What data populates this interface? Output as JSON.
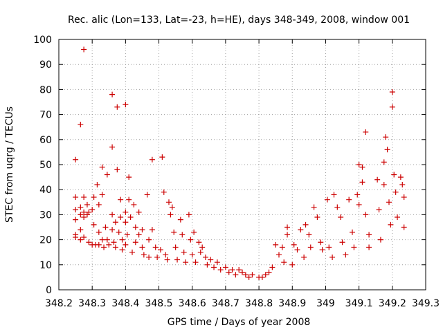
{
  "chart_data": {
    "type": "scatter",
    "title": "Rec. alic (Lon=133, Lat=-23, h=HE), days 348-349, 2008, window 001",
    "xlabel": "GPS time / Days of year 2008",
    "ylabel": "STEC from uqrg / TECUs",
    "xlim": [
      348.2,
      349.3
    ],
    "ylim": [
      0,
      100
    ],
    "xticks": [
      348.2,
      348.3,
      348.4,
      348.5,
      348.6,
      348.7,
      348.8,
      348.9,
      349,
      349.1,
      349.2,
      349.3
    ],
    "xtick_labels": [
      "348.2",
      "348.3",
      "348.4",
      "348.5",
      "348.6",
      "348.7",
      "348.8",
      "348.9",
      "349",
      "349.1",
      "349.2",
      "349.3"
    ],
    "yticks": [
      0,
      10,
      20,
      30,
      40,
      50,
      60,
      70,
      80,
      90,
      100
    ],
    "ytick_labels": [
      "0",
      "10",
      "20",
      "30",
      "40",
      "50",
      "60",
      "70",
      "80",
      "90",
      "100"
    ],
    "grid": true,
    "marker": "+",
    "color": "#cc0000",
    "series": [
      {
        "name": "",
        "points": [
          [
            348.25,
            52
          ],
          [
            348.25,
            37
          ],
          [
            348.25,
            32
          ],
          [
            348.25,
            28
          ],
          [
            348.25,
            22
          ],
          [
            348.25,
            21
          ],
          [
            348.265,
            66
          ],
          [
            348.265,
            33
          ],
          [
            348.265,
            30
          ],
          [
            348.265,
            24
          ],
          [
            348.265,
            20
          ],
          [
            348.275,
            96
          ],
          [
            348.275,
            37
          ],
          [
            348.275,
            31
          ],
          [
            348.275,
            29
          ],
          [
            348.275,
            21
          ],
          [
            348.285,
            34
          ],
          [
            348.285,
            30
          ],
          [
            348.29,
            31
          ],
          [
            348.29,
            19
          ],
          [
            348.3,
            32
          ],
          [
            348.3,
            18
          ],
          [
            348.305,
            37
          ],
          [
            348.305,
            26
          ],
          [
            348.31,
            18
          ],
          [
            348.315,
            42
          ],
          [
            348.32,
            34
          ],
          [
            348.32,
            23
          ],
          [
            348.32,
            18
          ],
          [
            348.33,
            49
          ],
          [
            348.33,
            38
          ],
          [
            348.33,
            20
          ],
          [
            348.335,
            17
          ],
          [
            348.34,
            25
          ],
          [
            348.345,
            46
          ],
          [
            348.345,
            20
          ],
          [
            348.35,
            18
          ],
          [
            348.36,
            78
          ],
          [
            348.36,
            57
          ],
          [
            348.36,
            30
          ],
          [
            348.36,
            24
          ],
          [
            348.365,
            19
          ],
          [
            348.37,
            27
          ],
          [
            348.37,
            17
          ],
          [
            348.375,
            73
          ],
          [
            348.375,
            48
          ],
          [
            348.38,
            23
          ],
          [
            348.385,
            36
          ],
          [
            348.385,
            29
          ],
          [
            348.39,
            20
          ],
          [
            348.39,
            16
          ],
          [
            348.4,
            74
          ],
          [
            348.4,
            31
          ],
          [
            348.4,
            27
          ],
          [
            348.4,
            18
          ],
          [
            348.405,
            22
          ],
          [
            348.41,
            45
          ],
          [
            348.41,
            36
          ],
          [
            348.415,
            29
          ],
          [
            348.42,
            15
          ],
          [
            348.425,
            34
          ],
          [
            348.43,
            25
          ],
          [
            348.43,
            19
          ],
          [
            348.44,
            31
          ],
          [
            348.44,
            22
          ],
          [
            348.45,
            24
          ],
          [
            348.45,
            17
          ],
          [
            348.455,
            14
          ],
          [
            348.465,
            38
          ],
          [
            348.47,
            20
          ],
          [
            348.47,
            13
          ],
          [
            348.48,
            52
          ],
          [
            348.48,
            24
          ],
          [
            348.49,
            17
          ],
          [
            348.495,
            13
          ],
          [
            348.505,
            16
          ],
          [
            348.51,
            53
          ],
          [
            348.515,
            39
          ],
          [
            348.52,
            14
          ],
          [
            348.525,
            12
          ],
          [
            348.53,
            35
          ],
          [
            348.535,
            30
          ],
          [
            348.54,
            33
          ],
          [
            348.545,
            23
          ],
          [
            348.55,
            17
          ],
          [
            348.555,
            12
          ],
          [
            348.565,
            28
          ],
          [
            348.57,
            22
          ],
          [
            348.575,
            15
          ],
          [
            348.58,
            11
          ],
          [
            348.59,
            30
          ],
          [
            348.595,
            20
          ],
          [
            348.6,
            14
          ],
          [
            348.605,
            23
          ],
          [
            348.61,
            11
          ],
          [
            348.62,
            19
          ],
          [
            348.625,
            15
          ],
          [
            348.63,
            17
          ],
          [
            348.64,
            13
          ],
          [
            348.645,
            10
          ],
          [
            348.655,
            12
          ],
          [
            348.665,
            9
          ],
          [
            348.675,
            11
          ],
          [
            348.685,
            8
          ],
          [
            348.7,
            9
          ],
          [
            348.71,
            7
          ],
          [
            348.72,
            8
          ],
          [
            348.73,
            6
          ],
          [
            348.74,
            8
          ],
          [
            348.75,
            7
          ],
          [
            348.76,
            6
          ],
          [
            348.77,
            5
          ],
          [
            348.78,
            6
          ],
          [
            348.8,
            5
          ],
          [
            348.81,
            5
          ],
          [
            348.82,
            6
          ],
          [
            348.83,
            7
          ],
          [
            348.84,
            9
          ],
          [
            348.85,
            18
          ],
          [
            348.86,
            14
          ],
          [
            348.87,
            17
          ],
          [
            348.875,
            11
          ],
          [
            348.885,
            25
          ],
          [
            348.885,
            22
          ],
          [
            348.9,
            10
          ],
          [
            348.905,
            18
          ],
          [
            348.915,
            16
          ],
          [
            348.925,
            24
          ],
          [
            348.935,
            13
          ],
          [
            348.94,
            26
          ],
          [
            348.95,
            22
          ],
          [
            348.955,
            17
          ],
          [
            348.965,
            33
          ],
          [
            348.975,
            29
          ],
          [
            348.985,
            19
          ],
          [
            348.99,
            16
          ],
          [
            349.005,
            36
          ],
          [
            349.01,
            17
          ],
          [
            349.02,
            13
          ],
          [
            349.025,
            38
          ],
          [
            349.035,
            33
          ],
          [
            349.045,
            29
          ],
          [
            349.05,
            19
          ],
          [
            349.06,
            14
          ],
          [
            349.07,
            36
          ],
          [
            349.08,
            23
          ],
          [
            349.085,
            17
          ],
          [
            349.095,
            38
          ],
          [
            349.1,
            50
          ],
          [
            349.1,
            34
          ],
          [
            349.11,
            43
          ],
          [
            349.11,
            49
          ],
          [
            349.12,
            63
          ],
          [
            349.12,
            30
          ],
          [
            349.13,
            22
          ],
          [
            349.13,
            17
          ],
          [
            349.155,
            44
          ],
          [
            349.16,
            32
          ],
          [
            349.165,
            20
          ],
          [
            349.175,
            51
          ],
          [
            349.175,
            42
          ],
          [
            349.18,
            61
          ],
          [
            349.185,
            56
          ],
          [
            349.19,
            35
          ],
          [
            349.195,
            26
          ],
          [
            349.2,
            79
          ],
          [
            349.2,
            73
          ],
          [
            349.205,
            46
          ],
          [
            349.21,
            39
          ],
          [
            349.215,
            29
          ],
          [
            349.225,
            45
          ],
          [
            349.23,
            42
          ],
          [
            349.235,
            37
          ],
          [
            349.235,
            25
          ]
        ]
      }
    ]
  }
}
